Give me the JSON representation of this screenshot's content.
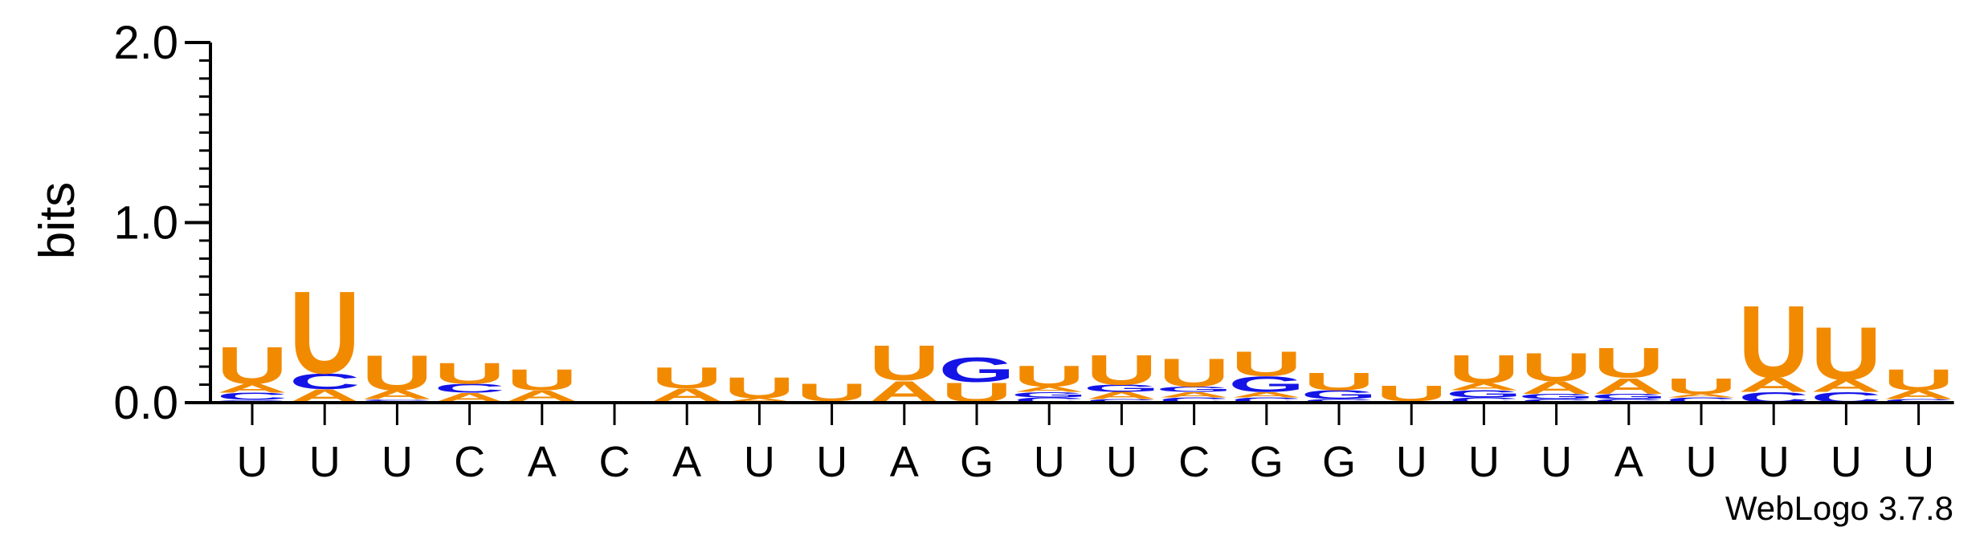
{
  "chart_data": {
    "type": "sequence-logo",
    "ylabel": "bits",
    "ylim": [
      0,
      2.0
    ],
    "yticks": [
      "0.0",
      "1.0",
      "2.0"
    ],
    "xlabels": [
      "U",
      "U",
      "U",
      "C",
      "A",
      "C",
      "A",
      "U",
      "U",
      "A",
      "G",
      "U",
      "U",
      "C",
      "G",
      "G",
      "U",
      "U",
      "U",
      "A",
      "U",
      "U",
      "U",
      "U"
    ],
    "colors": {
      "U": "#f28a00",
      "A": "#f28a00",
      "C": "#1414e6",
      "G": "#1414e6"
    },
    "positions": [
      [
        {
          "l": "G",
          "h": 0.015
        },
        {
          "l": "C",
          "h": 0.04
        },
        {
          "l": "A",
          "h": 0.05
        },
        {
          "l": "U",
          "h": 0.21
        }
      ],
      [
        {
          "l": "G",
          "h": 0.005
        },
        {
          "l": "A",
          "h": 0.07
        },
        {
          "l": "C",
          "h": 0.09
        },
        {
          "l": "U",
          "h": 0.47
        }
      ],
      [
        {
          "l": "G",
          "h": 0.01
        },
        {
          "l": "C",
          "h": 0.01
        },
        {
          "l": "A",
          "h": 0.05
        },
        {
          "l": "U",
          "h": 0.2
        }
      ],
      [
        {
          "l": "G",
          "h": 0.005
        },
        {
          "l": "A",
          "h": 0.05
        },
        {
          "l": "C",
          "h": 0.05
        },
        {
          "l": "U",
          "h": 0.12
        }
      ],
      [
        {
          "l": "C",
          "h": 0.01
        },
        {
          "l": "A",
          "h": 0.06
        },
        {
          "l": "U",
          "h": 0.12
        }
      ],
      [],
      [
        {
          "l": "C",
          "h": 0.01
        },
        {
          "l": "A",
          "h": 0.07
        },
        {
          "l": "U",
          "h": 0.12
        }
      ],
      [
        {
          "l": "C",
          "h": 0.005
        },
        {
          "l": "A",
          "h": 0.02
        },
        {
          "l": "U",
          "h": 0.12
        }
      ],
      [
        {
          "l": "C",
          "h": 0.01
        },
        {
          "l": "U",
          "h": 0.1
        }
      ],
      [
        {
          "l": "C",
          "h": 0.005
        },
        {
          "l": "A",
          "h": 0.12
        },
        {
          "l": "U",
          "h": 0.2
        }
      ],
      [
        {
          "l": "C",
          "h": 0.005
        },
        {
          "l": "U",
          "h": 0.11
        },
        {
          "l": "G",
          "h": 0.14
        }
      ],
      [
        {
          "l": "C",
          "h": 0.03
        },
        {
          "l": "G",
          "h": 0.03
        },
        {
          "l": "A",
          "h": 0.03
        },
        {
          "l": "U",
          "h": 0.12
        }
      ],
      [
        {
          "l": "C",
          "h": 0.02
        },
        {
          "l": "A",
          "h": 0.04
        },
        {
          "l": "G",
          "h": 0.04
        },
        {
          "l": "U",
          "h": 0.17
        }
      ],
      [
        {
          "l": "C",
          "h": 0.03
        },
        {
          "l": "A",
          "h": 0.03
        },
        {
          "l": "G",
          "h": 0.03
        },
        {
          "l": "U",
          "h": 0.16
        }
      ],
      [
        {
          "l": "C",
          "h": 0.03
        },
        {
          "l": "A",
          "h": 0.03
        },
        {
          "l": "G",
          "h": 0.09
        },
        {
          "l": "U",
          "h": 0.14
        }
      ],
      [
        {
          "l": "C",
          "h": 0.02
        },
        {
          "l": "G",
          "h": 0.05
        },
        {
          "l": "U",
          "h": 0.1
        }
      ],
      [
        {
          "l": "C",
          "h": 0.01
        },
        {
          "l": "U",
          "h": 0.09
        }
      ],
      [
        {
          "l": "C",
          "h": 0.03
        },
        {
          "l": "G",
          "h": 0.04
        },
        {
          "l": "A",
          "h": 0.04
        },
        {
          "l": "U",
          "h": 0.16
        }
      ],
      [
        {
          "l": "C",
          "h": 0.02
        },
        {
          "l": "G",
          "h": 0.03
        },
        {
          "l": "A",
          "h": 0.07
        },
        {
          "l": "U",
          "h": 0.16
        }
      ],
      [
        {
          "l": "C",
          "h": 0.02
        },
        {
          "l": "G",
          "h": 0.03
        },
        {
          "l": "A",
          "h": 0.09
        },
        {
          "l": "U",
          "h": 0.17
        }
      ],
      [
        {
          "l": "C",
          "h": 0.03
        },
        {
          "l": "A",
          "h": 0.02
        },
        {
          "l": "U",
          "h": 0.09
        }
      ],
      [
        {
          "l": "C",
          "h": 0.06
        },
        {
          "l": "A",
          "h": 0.08
        },
        {
          "l": "U",
          "h": 0.41
        }
      ],
      [
        {
          "l": "C",
          "h": 0.06
        },
        {
          "l": "A",
          "h": 0.07
        },
        {
          "l": "U",
          "h": 0.3
        }
      ],
      [
        {
          "l": "C",
          "h": 0.02
        },
        {
          "l": "A",
          "h": 0.05
        },
        {
          "l": "U",
          "h": 0.12
        }
      ]
    ]
  },
  "footer": {
    "credit": "WebLogo 3.7.8"
  }
}
